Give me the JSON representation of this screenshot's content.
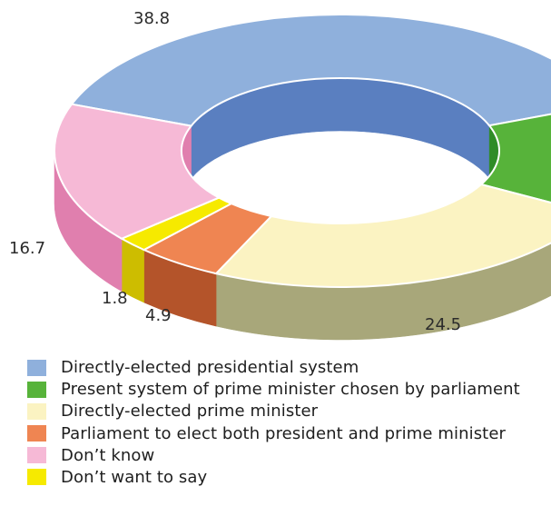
{
  "chart_data": {
    "type": "pie",
    "style": "3d-donut",
    "legend_position": "bottom-left",
    "series": [
      {
        "name": "Directly-elected presidential system",
        "value": 38.8,
        "label": "38.8",
        "color": "#8fb0dc",
        "side_color": "#5a7fc0"
      },
      {
        "name": "Present system of prime minister chosen by parliament",
        "value": 13.3,
        "label": "",
        "color": "#57b33a",
        "side_color": "#2f8c27"
      },
      {
        "name": "Directly-elected prime minister",
        "value": 24.5,
        "label": "24.5",
        "color": "#fbf3c2",
        "side_color": "#a8a77a"
      },
      {
        "name": "Parliament to elect both president and prime minister",
        "value": 4.9,
        "label": "4.9",
        "color": "#ef8552",
        "side_color": "#b4542a"
      },
      {
        "name": "Don’t want to say",
        "value": 1.8,
        "label": "1.8",
        "color": "#f6ea00",
        "side_color": "#cdbd00"
      },
      {
        "name": "Don’t know",
        "value": 16.7,
        "label": "16.7",
        "color": "#f6b9d6",
        "side_color": "#e07fae"
      }
    ],
    "legend_order": [
      0,
      1,
      2,
      3,
      5,
      4
    ]
  }
}
